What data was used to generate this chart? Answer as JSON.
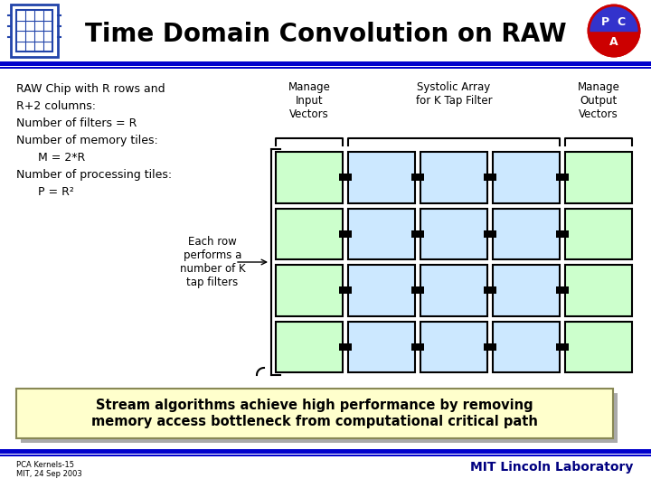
{
  "title": "Time Domain Convolution on RAW",
  "title_fontsize": 20,
  "bg_color": "#ffffff",
  "header_bg": "#ffffff",
  "blue_line_color": "#0000cc",
  "grid_rows": 4,
  "grid_cols": 5,
  "col_green_color": "#ccffcc",
  "col_blue_color": "#cce8ff",
  "left_text_lines": [
    "RAW Chip with R rows and",
    "R+2 columns:",
    "Number of filters = R",
    "Number of memory tiles:",
    "      M = 2*R",
    "Number of processing tiles:",
    "      P = R²"
  ],
  "bracket_text_left": "Manage\nInput\nVectors",
  "bracket_text_middle": "Systolic Array\nfor K Tap Filter",
  "bracket_text_right": "Manage\nOutput\nVectors",
  "row_annotation": "Each row\nperforms a\nnumber of K\ntap filters",
  "bottom_box_text": "Stream algorithms achieve high performance by removing\nmemory access bottleneck from computational critical path",
  "footer_left": "PCA Kernels-15\nMIT, 24 Sep 2003",
  "footer_right": "MIT Lincoln Laboratory"
}
